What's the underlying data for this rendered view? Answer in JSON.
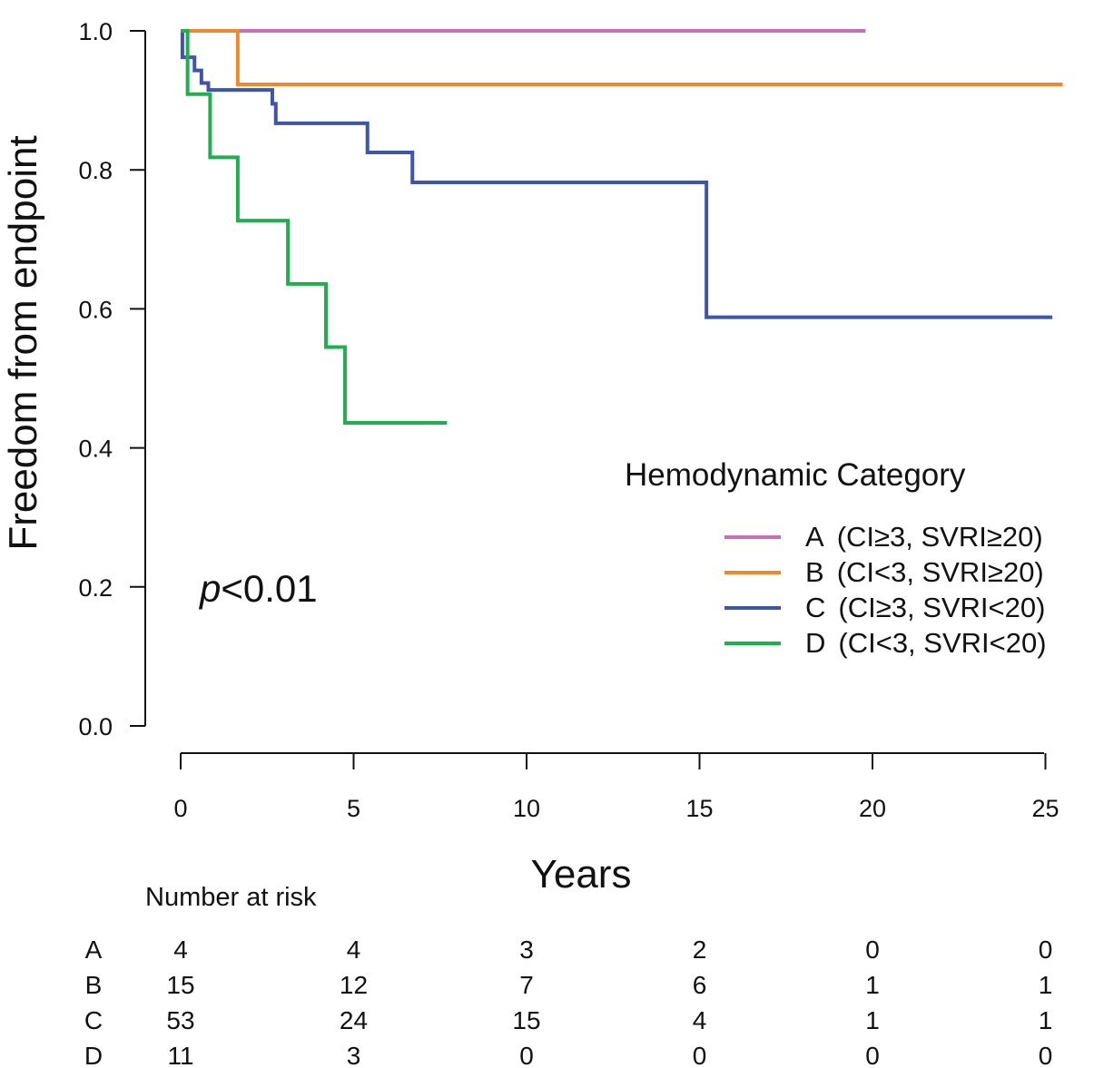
{
  "chart_data": {
    "type": "line",
    "subtype": "kaplan-meier step",
    "ylabel": "Freedom from endpoint",
    "xlabel": "Years",
    "xlim": [
      0,
      25.5
    ],
    "ylim": [
      0,
      1.0
    ],
    "xticks": [
      "0",
      "5",
      "10",
      "15",
      "20",
      "25"
    ],
    "xtick_values": [
      0,
      5,
      10,
      15,
      20,
      25
    ],
    "yticks": [
      "0.0",
      "0.2",
      "0.4",
      "0.6",
      "0.8",
      "1.0"
    ],
    "ytick_values": [
      0,
      0.2,
      0.4,
      0.6,
      0.8,
      1.0
    ],
    "grid": false,
    "annotation": {
      "italic": "p",
      "rest": "<0.01"
    },
    "legend": {
      "title": "Hemodynamic Category",
      "position": "right"
    },
    "series": [
      {
        "id": "A",
        "name": "A",
        "label_detail": "(CI≥3, SVRI≥20)",
        "color": "#c86eb7",
        "x": [
          0,
          19.8
        ],
        "y": [
          1.0,
          1.0
        ]
      },
      {
        "id": "B",
        "name": "B",
        "label_detail": "(CI<3, SVRI≥20)",
        "color": "#ee8a2c",
        "x": [
          0,
          1.65,
          25.5
        ],
        "y": [
          1.0,
          0.923,
          0.923
        ]
      },
      {
        "id": "C",
        "name": "C",
        "label_detail": "(CI≥3, SVRI<20)",
        "color": "#3f55a8",
        "x": [
          0,
          0.05,
          0.4,
          0.6,
          0.8,
          2.65,
          2.75,
          5.4,
          6.7,
          15.2,
          25.2
        ],
        "y": [
          1.0,
          0.962,
          0.943,
          0.925,
          0.915,
          0.895,
          0.867,
          0.825,
          0.782,
          0.588,
          0.588
        ]
      },
      {
        "id": "D",
        "name": "D",
        "label_detail": "(CI<3, SVRI<20)",
        "color": "#22ad4e",
        "x": [
          0,
          0.2,
          0.85,
          1.65,
          3.1,
          4.2,
          4.75,
          7.7
        ],
        "y": [
          1.0,
          0.909,
          0.818,
          0.727,
          0.636,
          0.545,
          0.436,
          0.436
        ]
      }
    ],
    "risk_table": {
      "title": "Number at risk",
      "rows": [
        {
          "group": "A",
          "values": [
            "4",
            "4",
            "3",
            "2",
            "0",
            "0"
          ]
        },
        {
          "group": "B",
          "values": [
            "15",
            "12",
            "7",
            "6",
            "1",
            "1"
          ]
        },
        {
          "group": "C",
          "values": [
            "53",
            "24",
            "15",
            "4",
            "1",
            "1"
          ]
        },
        {
          "group": "D",
          "values": [
            "11",
            "3",
            "0",
            "0",
            "0",
            "0"
          ]
        }
      ]
    }
  }
}
